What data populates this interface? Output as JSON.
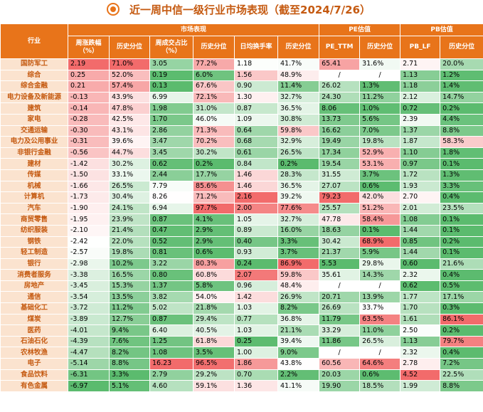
{
  "title": "近一周中信一级行业市场表现（截至2024/7/26）",
  "header_colors": {
    "header_bg": "#e8741a",
    "name_bg": "#fbe3cf",
    "name_text": "#c55a11",
    "title_color": "#c55a11"
  },
  "chart_data": {
    "type": "table",
    "title": "近一周中信一级行业市场表现（截至2024/7/26）",
    "group_headers": [
      "市场表现",
      "PE估值",
      "PB估值"
    ],
    "columns": [
      "行业",
      "周涨跌幅（%）",
      "历史分位",
      "周成交占比（%）",
      "历史分位",
      "日均换手率",
      "历史分位",
      "PE_TTM",
      "历史分位",
      "PB_LF",
      "历史分位"
    ],
    "rows": [
      {
        "name": "国防军工",
        "values": [
          "2.19",
          "71.0%",
          "3.05",
          "77.2%",
          "1.18",
          "41.7%",
          "65.41",
          "31.6%",
          "2.71",
          "20.0%"
        ]
      },
      {
        "name": "综合",
        "values": [
          "0.25",
          "52.0%",
          "0.19",
          "6.0%",
          "1.56",
          "48.9%",
          "/",
          "/",
          "1.13",
          "1.2%"
        ]
      },
      {
        "name": "综合金融",
        "values": [
          "0.21",
          "57.4%",
          "0.13",
          "67.6%",
          "0.90",
          "11.4%",
          "26.02",
          "1.3%",
          "1.18",
          "1.4%"
        ]
      },
      {
        "name": "电力设备及新能源",
        "values": [
          "-0.13",
          "43.9%",
          "6.99",
          "72.1%",
          "1.30",
          "32.7%",
          "24.30",
          "11.2%",
          "2.12",
          "14.7%"
        ]
      },
      {
        "name": "建筑",
        "values": [
          "-0.14",
          "47.8%",
          "1.98",
          "31.0%",
          "0.87",
          "36.5%",
          "8.06",
          "1.0%",
          "0.72",
          "0.2%"
        ]
      },
      {
        "name": "家电",
        "values": [
          "-0.28",
          "42.5%",
          "1.70",
          "46.0%",
          "1.09",
          "30.8%",
          "13.73",
          "5.6%",
          "2.39",
          "4.4%"
        ]
      },
      {
        "name": "交通运输",
        "values": [
          "-0.30",
          "43.1%",
          "2.86",
          "71.3%",
          "0.64",
          "59.8%",
          "16.62",
          "7.0%",
          "1.37",
          "8.8%"
        ]
      },
      {
        "name": "电力及公用事业",
        "values": [
          "-0.31",
          "39.6%",
          "3.47",
          "70.2%",
          "0.68",
          "32.9%",
          "19.49",
          "19.8%",
          "1.87",
          "58.3%"
        ]
      },
      {
        "name": "非银行金融",
        "values": [
          "-0.56",
          "44.7%",
          "3.45",
          "30.2%",
          "0.61",
          "26.5%",
          "17.34",
          "52.9%",
          "1.10",
          "1.8%"
        ]
      },
      {
        "name": "建材",
        "values": [
          "-1.42",
          "30.2%",
          "0.62",
          "0.2%",
          "0.84",
          "0.2%",
          "19.54",
          "53.1%",
          "0.97",
          "0.1%"
        ]
      },
      {
        "name": "传媒",
        "values": [
          "-1.50",
          "33.1%",
          "2.44",
          "17.7%",
          "1.46",
          "28.3%",
          "31.55",
          "3.7%",
          "1.72",
          "1.3%"
        ]
      },
      {
        "name": "机械",
        "values": [
          "-1.66",
          "26.5%",
          "7.79",
          "85.6%",
          "1.46",
          "36.5%",
          "27.07",
          "0.6%",
          "1.93",
          "3.3%"
        ]
      },
      {
        "name": "计算机",
        "values": [
          "-1.73",
          "30.4%",
          "8.26",
          "71.2%",
          "2.16",
          "39.2%",
          "79.23",
          "42.0%",
          "2.70",
          "0.4%"
        ]
      },
      {
        "name": "汽车",
        "values": [
          "-1.90",
          "24.1%",
          "6.94",
          "97.7%",
          "2.00",
          "77.6%",
          "25.57",
          "51.2%",
          "2.01",
          "23.5%"
        ]
      },
      {
        "name": "商贸零售",
        "values": [
          "-1.95",
          "23.9%",
          "0.87",
          "4.1%",
          "1.05",
          "32.7%",
          "47.78",
          "58.4%",
          "1.08",
          "0.1%"
        ]
      },
      {
        "name": "纺织服装",
        "values": [
          "-2.10",
          "21.4%",
          "0.47",
          "2.9%",
          "0.89",
          "16.0%",
          "18.63",
          "0.1%",
          "1.44",
          "0.1%"
        ]
      },
      {
        "name": "钢铁",
        "values": [
          "-2.42",
          "22.0%",
          "0.52",
          "2.9%",
          "0.40",
          "3.3%",
          "30.42",
          "68.9%",
          "0.85",
          "0.2%"
        ]
      },
      {
        "name": "轻工制造",
        "values": [
          "-2.57",
          "19.8%",
          "0.81",
          "0.6%",
          "0.93",
          "3.7%",
          "21.37",
          "5.9%",
          "1.44",
          "0.1%"
        ]
      },
      {
        "name": "银行",
        "values": [
          "-2.98",
          "10.2%",
          "3.22",
          "80.3%",
          "0.24",
          "86.9%",
          "5.53",
          "29.8%",
          "0.60",
          "21.6%"
        ]
      },
      {
        "name": "消费者服务",
        "values": [
          "-3.38",
          "16.5%",
          "0.80",
          "60.8%",
          "2.07",
          "59.8%",
          "35.61",
          "14.3%",
          "2.32",
          "0.4%"
        ]
      },
      {
        "name": "房地产",
        "values": [
          "-3.45",
          "15.3%",
          "1.37",
          "5.8%",
          "0.96",
          "48.4%",
          "/",
          "/",
          "0.62",
          "0.5%"
        ]
      },
      {
        "name": "通信",
        "values": [
          "-3.54",
          "13.5%",
          "3.82",
          "54.0%",
          "1.42",
          "26.9%",
          "20.71",
          "13.9%",
          "1.77",
          "17.1%"
        ]
      },
      {
        "name": "基础化工",
        "values": [
          "-3.72",
          "11.2%",
          "5.02",
          "21.8%",
          "1.03",
          "8.2%",
          "26.69",
          "33.7%",
          "1.70",
          "0.3%"
        ]
      },
      {
        "name": "煤炭",
        "values": [
          "-3.89",
          "12.7%",
          "0.87",
          "29.4%",
          "0.77",
          "36.8%",
          "11.79",
          "63.5%",
          "1.61",
          "86.1%"
        ]
      },
      {
        "name": "医药",
        "values": [
          "-4.01",
          "9.4%",
          "6.40",
          "40.5%",
          "1.03",
          "21.1%",
          "33.29",
          "11.0%",
          "2.50",
          "0.2%"
        ]
      },
      {
        "name": "石油石化",
        "values": [
          "-4.39",
          "7.6%",
          "1.25",
          "61.8%",
          "0.25",
          "39.4%",
          "11.86",
          "26.5%",
          "1.13",
          "79.7%"
        ]
      },
      {
        "name": "农林牧渔",
        "values": [
          "-4.47",
          "8.2%",
          "1.08",
          "3.5%",
          "1.00",
          "9.0%",
          "/",
          "/",
          "2.32",
          "0.4%"
        ]
      },
      {
        "name": "电子",
        "values": [
          "-5.14",
          "8.8%",
          "16.23",
          "96.5%",
          "1.86",
          "43.8%",
          "60.56",
          "64.6%",
          "2.78",
          "7.2%"
        ]
      },
      {
        "name": "食品饮料",
        "values": [
          "-6.31",
          "3.3%",
          "2.79",
          "29.2%",
          "0.70",
          "2.2%",
          "20.03",
          "0.6%",
          "4.52",
          "22.5%"
        ]
      },
      {
        "name": "有色金属",
        "values": [
          "-6.97",
          "5.1%",
          "4.60",
          "59.1%",
          "1.36",
          "41.1%",
          "19.90",
          "18.5%",
          "1.99",
          "8.8%"
        ]
      }
    ]
  }
}
